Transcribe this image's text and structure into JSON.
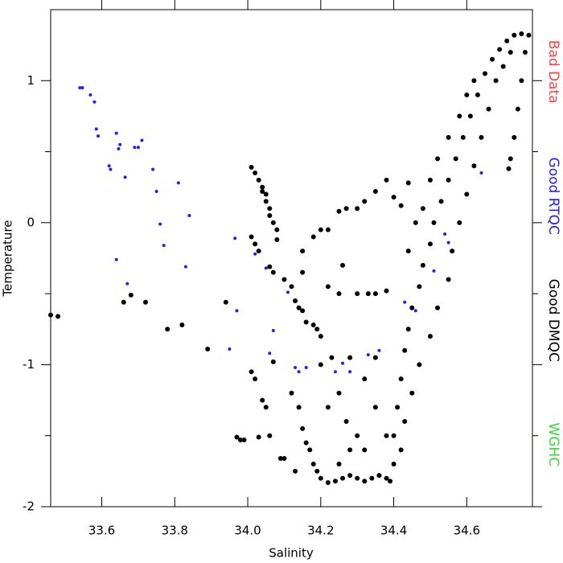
{
  "chart_data": {
    "type": "scatter",
    "xlabel": "Salinity",
    "ylabel": "Temperature",
    "xlim": [
      33.46,
      34.78
    ],
    "ylim": [
      -2,
      1.5
    ],
    "xticks": [
      33.6,
      33.8,
      {
        "value": 34,
        "label": "34.0"
      },
      34.2,
      34.4,
      34.6
    ],
    "yticks": [
      -2,
      -1,
      0,
      1
    ],
    "yminorticks": [
      -1.5,
      -0.5,
      0.5
    ],
    "legend": "right",
    "series": [
      {
        "name": "Bad Data",
        "color": "#ff4040",
        "x": [],
        "values": []
      },
      {
        "name": "Good RTQC",
        "color": "#2020ee",
        "x": [
          33.54,
          33.547,
          33.569,
          33.58,
          33.585,
          33.59,
          33.62,
          33.624,
          33.64,
          33.646,
          33.65,
          33.664,
          33.67,
          33.64,
          33.69,
          33.7,
          33.71,
          33.74,
          33.75,
          33.76,
          33.77,
          33.81,
          33.83,
          33.84,
          33.95,
          33.965,
          33.97,
          34.02,
          34.05,
          34.07,
          34.06,
          34.11,
          34.13,
          34.14,
          34.16,
          34.24,
          34.26,
          34.28,
          34.33,
          34.36,
          34.43,
          34.46,
          34.51,
          34.54,
          34.55,
          34.64
        ],
        "values": [
          0.95,
          0.95,
          0.9,
          0.85,
          0.66,
          0.61,
          0.4,
          0.375,
          0.63,
          0.52,
          0.55,
          0.32,
          -0.43,
          -0.26,
          0.53,
          0.53,
          0.58,
          0.375,
          0.22,
          -0.01,
          -0.16,
          0.28,
          -0.31,
          0.05,
          -0.89,
          -0.11,
          -0.62,
          -0.22,
          -0.32,
          -0.76,
          -0.92,
          -0.49,
          -1.02,
          -1.05,
          -1.02,
          -1.05,
          -0.99,
          -1.05,
          -0.93,
          -0.9,
          -0.56,
          -0.62,
          -0.34,
          -0.08,
          -0.14,
          0.35
        ]
      },
      {
        "name": "Good DMQC",
        "color": "#000000",
        "x": [
          33.46,
          33.48,
          33.66,
          33.68,
          33.72,
          33.78,
          33.82,
          33.89,
          33.94,
          33.97,
          33.98,
          33.99,
          34.01,
          34.02,
          34.04,
          34.05,
          34.03,
          34.06,
          34.07,
          34.09,
          34.1,
          34.01,
          34.02,
          34.03,
          34.04,
          34.05,
          34.06,
          34.06,
          34.07,
          34.08,
          34.05,
          34.04,
          34.08,
          34.01,
          34.02,
          34.03,
          34.06,
          34.07,
          34.1,
          34.12,
          34.13,
          34.14,
          34.15,
          34.16,
          34.18,
          34.19,
          34.2,
          34.15,
          34.15,
          34.18,
          34.2,
          34.22,
          34.25,
          34.27,
          34.3,
          34.32,
          34.35,
          34.38,
          34.4,
          34.42,
          34.44,
          34.26,
          34.3,
          34.33,
          34.35,
          34.38,
          34.22,
          34.25,
          34.12,
          34.14,
          34.15,
          34.16,
          34.17,
          34.18,
          34.19,
          34.2,
          34.22,
          34.24,
          34.26,
          34.28,
          34.3,
          34.32,
          34.34,
          34.36,
          34.38,
          34.39,
          34.13,
          34.25,
          34.28,
          34.3,
          34.32,
          34.27,
          34.22,
          34.25,
          34.2,
          34.23,
          34.28,
          34.32,
          34.35,
          34.38,
          34.35,
          34.4,
          34.4,
          34.41,
          34.42,
          34.43,
          34.44,
          34.45,
          34.47,
          34.48,
          34.5,
          34.51,
          34.53,
          34.55,
          34.57,
          34.59,
          34.61,
          34.63,
          34.65,
          34.67,
          34.69,
          34.71,
          34.73,
          34.75,
          34.77,
          34.45,
          34.47,
          34.5,
          34.52,
          34.55,
          34.56,
          34.58,
          34.6,
          34.62,
          34.64,
          34.66,
          34.68,
          34.7,
          34.72,
          34.43,
          34.42,
          34.44,
          34.46,
          34.48,
          34.5,
          34.52,
          34.55,
          34.58,
          34.6,
          34.62,
          34.76,
          34.75,
          34.74,
          34.73,
          34.72,
          34.715
        ],
        "values": [
          -0.65,
          -0.66,
          -0.56,
          -0.51,
          -0.56,
          -0.75,
          -0.72,
          -0.89,
          -0.56,
          -1.51,
          -1.53,
          -1.53,
          -1.05,
          -1.1,
          -1.25,
          -1.3,
          -1.51,
          -1.5,
          -0.98,
          -1.66,
          -1.66,
          0.39,
          0.35,
          0.3,
          0.25,
          0.2,
          0.1,
          0.05,
          0.0,
          -0.05,
          0.15,
          0.22,
          -0.12,
          -0.1,
          -0.15,
          -0.2,
          -0.31,
          -0.35,
          -0.4,
          -0.45,
          -0.55,
          -0.6,
          -0.62,
          -0.7,
          -0.72,
          -0.75,
          -0.8,
          -0.35,
          -0.2,
          -0.1,
          -0.05,
          -0.05,
          0.08,
          0.1,
          0.1,
          0.15,
          0.22,
          0.3,
          0.18,
          0.12,
          0.28,
          -0.3,
          -0.5,
          -0.5,
          -0.5,
          -0.48,
          -0.45,
          -0.5,
          -1.2,
          -1.3,
          -1.45,
          -1.55,
          -1.6,
          -1.7,
          -1.75,
          -1.8,
          -1.83,
          -1.82,
          -1.8,
          -1.78,
          -1.8,
          -1.82,
          -1.8,
          -1.78,
          -1.8,
          -1.82,
          -1.75,
          -1.7,
          -1.6,
          -1.5,
          -1.6,
          -1.4,
          -1.3,
          -1.2,
          -1.0,
          -0.95,
          -0.95,
          -1.1,
          -1.3,
          -1.5,
          -0.95,
          -1.7,
          -1.5,
          -1.3,
          -1.1,
          -0.9,
          -0.75,
          -0.6,
          -0.45,
          -0.3,
          -0.15,
          0.0,
          0.15,
          0.3,
          0.45,
          0.6,
          0.75,
          0.9,
          1.05,
          1.15,
          1.22,
          1.28,
          1.32,
          1.33,
          1.32,
          -1.2,
          -1.0,
          -0.8,
          -0.6,
          -0.4,
          -0.2,
          0.0,
          0.2,
          0.4,
          0.6,
          0.8,
          1.0,
          1.1,
          1.2,
          -1.4,
          -1.6,
          -0.2,
          0.0,
          0.1,
          0.3,
          0.45,
          0.6,
          0.75,
          0.9,
          1.0,
          1.2,
          1.0,
          0.8,
          0.6,
          0.45,
          0.38
        ]
      },
      {
        "name": "WGHC",
        "color": "#33dd33",
        "x": [],
        "values": []
      }
    ]
  }
}
